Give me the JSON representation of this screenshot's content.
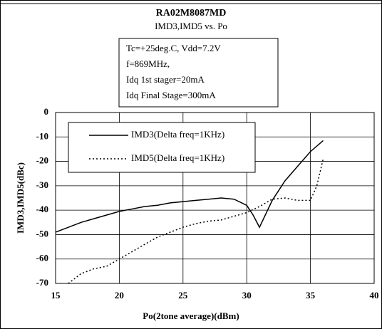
{
  "chart_data": {
    "type": "line",
    "title": "RA02M8087MD",
    "subtitle": "IMD3,IMD5 vs. Po",
    "annotation": [
      "Tc=+25deg.C, Vdd=7.2V",
      "f=869MHz,",
      "Idq 1st stager=20mA",
      "Idq Final Stage=300mA"
    ],
    "x_label": "Po(2tone average)(dBm)",
    "y_label": "IMD3,IMD5(dBc)",
    "xlim": [
      15,
      40
    ],
    "xticks": [
      15,
      20,
      25,
      30,
      35,
      40
    ],
    "ylim": [
      -70,
      0
    ],
    "yticks": [
      0,
      -10,
      -20,
      -30,
      -40,
      -50,
      -60,
      -70
    ],
    "grid": true,
    "series": [
      {
        "name": "IMD3(Delta freq=1KHz)",
        "color": "#000000",
        "dash": "solid",
        "x": [
          15,
          16,
          17,
          18,
          19,
          20,
          21,
          22,
          23,
          24,
          25,
          26,
          27,
          28,
          29,
          30,
          30.5,
          31,
          32,
          33,
          34,
          35,
          36
        ],
        "values": [
          -49,
          -47,
          -45,
          -43.5,
          -42,
          -40.5,
          -39.5,
          -38.5,
          -38,
          -37,
          -36.5,
          -36,
          -35.5,
          -35,
          -35.5,
          -38,
          -42,
          -47,
          -36,
          -28,
          -22,
          -16,
          -11.5
        ]
      },
      {
        "name": "IMD5(Delta freq=1KHz)",
        "color": "#000000",
        "dash": "dotted",
        "x": [
          16,
          17,
          18,
          19,
          20,
          21,
          22,
          23,
          24,
          25,
          26,
          27,
          28,
          29,
          30,
          31,
          32,
          33,
          34,
          35,
          35.5,
          36
        ],
        "values": [
          -70,
          -66,
          -64,
          -63,
          -60,
          -57,
          -54,
          -51,
          -49,
          -47,
          -45.5,
          -44.5,
          -44,
          -42.5,
          -41,
          -38.5,
          -35.5,
          -35,
          -36,
          -36,
          -30,
          -19
        ]
      }
    ]
  }
}
